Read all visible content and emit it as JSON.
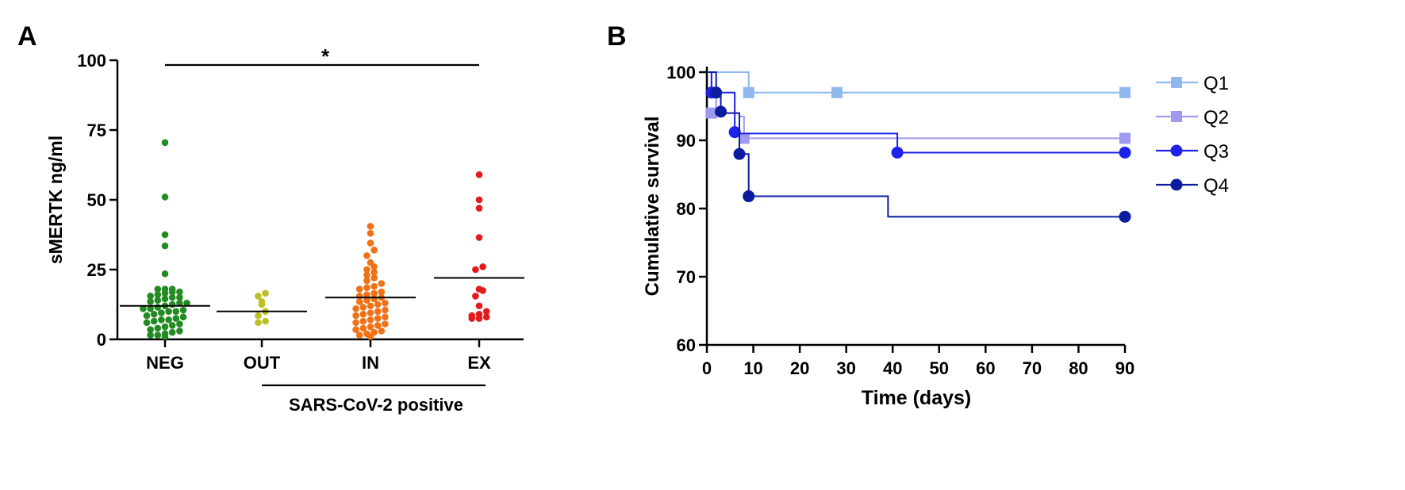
{
  "chart_data": [
    {
      "panel": "A",
      "type": "scatter",
      "ylabel": "sMERTK ng/ml",
      "ylim": [
        0,
        100
      ],
      "yticks": [
        0,
        25,
        50,
        75,
        100
      ],
      "categories": [
        "NEG",
        "OUT",
        "IN",
        "EX"
      ],
      "group_label": "SARS-CoV-2 positive",
      "significance": "*",
      "colors": {
        "NEG": "#228B22",
        "OUT": "#BDBD27",
        "IN": "#F07216",
        "EX": "#E31A1C"
      },
      "medians": {
        "NEG": 12,
        "OUT": 10,
        "IN": 15,
        "EX": 22
      },
      "values": {
        "NEG": [
          70.5,
          51,
          37.5,
          33.5,
          23.5,
          18,
          18,
          18,
          17,
          17,
          16.5,
          16,
          15.5,
          15,
          15,
          14.5,
          14,
          13.5,
          13,
          13,
          12.5,
          12,
          11.5,
          11,
          11,
          10.5,
          10,
          10,
          9.5,
          9,
          8.5,
          8,
          7.5,
          7,
          7,
          6.5,
          6,
          5.5,
          5,
          4.5,
          4,
          3.5,
          3,
          2.5,
          2,
          1.5,
          1.5,
          1
        ],
        "OUT": [
          16.5,
          15.5,
          13.5,
          12.5,
          10,
          8.5,
          6.5,
          6
        ],
        "IN": [
          40.5,
          38,
          34.5,
          32,
          30,
          27.5,
          26,
          25,
          24,
          23,
          22,
          21,
          20,
          19,
          18.5,
          18,
          17,
          16.5,
          16,
          15.5,
          15,
          14.5,
          14,
          13.5,
          13,
          12.5,
          12,
          11.5,
          11,
          10.5,
          10,
          9.5,
          9,
          8.5,
          8,
          7.5,
          7,
          6.5,
          6,
          5.5,
          5,
          4.5,
          4,
          3.5,
          3,
          2.5,
          2,
          1.5,
          1
        ],
        "EX": [
          59,
          50,
          47,
          36.5,
          26,
          25,
          18,
          17.5,
          15.5,
          12,
          10,
          9,
          8.5,
          8,
          7.5,
          7.5
        ]
      }
    },
    {
      "panel": "B",
      "type": "line",
      "subtype": "kaplan-meier",
      "xlabel": "Time (days)",
      "ylabel": "Cumulative survival",
      "xlim": [
        0,
        90
      ],
      "ylim": [
        60,
        100
      ],
      "xticks": [
        0,
        10,
        20,
        30,
        40,
        50,
        60,
        70,
        80,
        90
      ],
      "yticks": [
        60,
        70,
        80,
        90,
        100
      ],
      "series": [
        {
          "name": "Q1",
          "color": "#8FB8EE",
          "marker": "square",
          "steps": [
            [
              0,
              100
            ],
            [
              9,
              97
            ],
            [
              90,
              97
            ]
          ],
          "markers": [
            [
              9,
              97
            ],
            [
              28,
              97
            ],
            [
              90,
              97
            ]
          ]
        },
        {
          "name": "Q2",
          "color": "#9E9AEF",
          "marker": "square",
          "steps": [
            [
              0,
              100
            ],
            [
              1,
              97
            ],
            [
              2,
              94
            ],
            [
              7,
              93.5
            ],
            [
              8,
              90.3
            ],
            [
              90,
              90.3
            ]
          ],
          "markers": [
            [
              1,
              94
            ],
            [
              8,
              90.3
            ],
            [
              90,
              90.3
            ]
          ]
        },
        {
          "name": "Q3",
          "color": "#1F22E8",
          "marker": "circle",
          "steps": [
            [
              0,
              100
            ],
            [
              1,
              97
            ],
            [
              6,
              91
            ],
            [
              41,
              88.2
            ],
            [
              90,
              88.2
            ]
          ],
          "markers": [
            [
              1,
              97
            ],
            [
              6,
              91.2
            ],
            [
              41,
              88.2
            ],
            [
              90,
              88.2
            ]
          ]
        },
        {
          "name": "Q4",
          "color": "#0B1D9E",
          "marker": "circle",
          "steps": [
            [
              0,
              100
            ],
            [
              2,
              97
            ],
            [
              3,
              94
            ],
            [
              7,
              88
            ],
            [
              9,
              81.8
            ],
            [
              39,
              78.8
            ],
            [
              90,
              78.8
            ]
          ],
          "markers": [
            [
              2,
              97
            ],
            [
              3,
              94.2
            ],
            [
              7,
              88
            ],
            [
              9,
              81.8
            ],
            [
              90,
              78.8
            ]
          ]
        }
      ]
    }
  ]
}
